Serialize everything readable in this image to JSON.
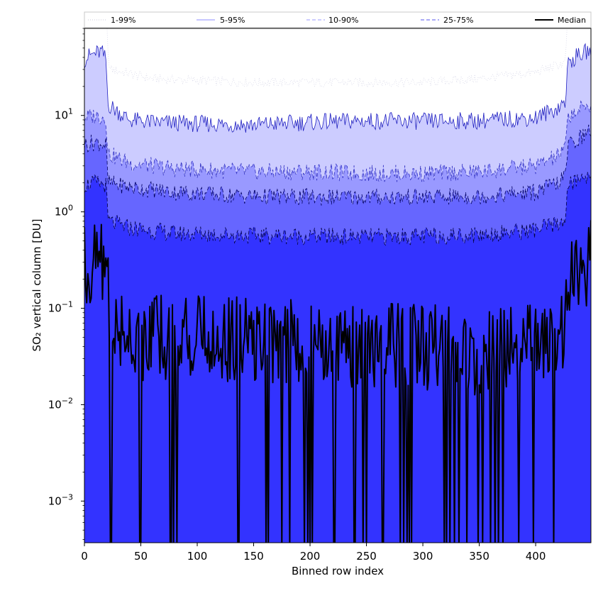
{
  "chart_data": {
    "type": "area",
    "xlabel": "Binned row index",
    "ylabel": "SO₂ vertical column [DU]",
    "xlim": [
      0,
      449
    ],
    "ylim": [
      0.00037,
      80
    ],
    "yscale": "log",
    "x_ticks": [
      0,
      50,
      100,
      150,
      200,
      250,
      300,
      350,
      400
    ],
    "y_ticks": [
      {
        "value": 0.001,
        "base": "10",
        "exp": "−3"
      },
      {
        "value": 0.01,
        "base": "10",
        "exp": "−2"
      },
      {
        "value": 0.1,
        "base": "10",
        "exp": "−1"
      },
      {
        "value": 1,
        "base": "10",
        "exp": "0"
      },
      {
        "value": 10,
        "base": "10",
        "exp": "1"
      }
    ],
    "grid": false,
    "legend_position": "top",
    "series": [
      {
        "name": "1-99%",
        "fill": "#ffffff",
        "line": "#d8d8e8",
        "style": "dotted",
        "lower_profile": [
          [
            0,
            0.0003
          ],
          [
            449,
            0.0003
          ]
        ],
        "upper_profile": [
          [
            0,
            115
          ],
          [
            5,
            140
          ],
          [
            10,
            150
          ],
          [
            15,
            160
          ],
          [
            19,
            150
          ],
          [
            21,
            40
          ],
          [
            23,
            30
          ],
          [
            60,
            24
          ],
          [
            150,
            22
          ],
          [
            250,
            22
          ],
          [
            300,
            22
          ],
          [
            350,
            24
          ],
          [
            400,
            28
          ],
          [
            426,
            35
          ],
          [
            429,
            130
          ],
          [
            435,
            140
          ],
          [
            449,
            170
          ]
        ]
      },
      {
        "name": "5-95%",
        "fill": "#ccccff",
        "line": "#2020c0",
        "style": "solid",
        "lower_profile": [
          [
            0,
            0.0003
          ],
          [
            449,
            0.0003
          ]
        ],
        "upper_profile": [
          [
            0,
            38
          ],
          [
            5,
            42
          ],
          [
            10,
            44
          ],
          [
            15,
            46
          ],
          [
            19,
            38
          ],
          [
            21,
            13
          ],
          [
            25,
            12
          ],
          [
            40,
            9
          ],
          [
            60,
            8.5
          ],
          [
            100,
            8.2
          ],
          [
            150,
            8
          ],
          [
            200,
            8.5
          ],
          [
            250,
            8.8
          ],
          [
            300,
            8.7
          ],
          [
            350,
            8.8
          ],
          [
            400,
            9.5
          ],
          [
            420,
            12
          ],
          [
            426,
            14
          ],
          [
            429,
            35
          ],
          [
            435,
            40
          ],
          [
            449,
            48
          ]
        ]
      },
      {
        "name": "10-90%",
        "fill": "#9999ff",
        "line": "#3030c0",
        "style": "dashed",
        "lower_profile": [
          [
            0,
            0.0003
          ],
          [
            449,
            0.0003
          ]
        ],
        "upper_profile": [
          [
            0,
            9.5
          ],
          [
            10,
            10
          ],
          [
            19,
            9.5
          ],
          [
            21,
            4
          ],
          [
            40,
            3.2
          ],
          [
            80,
            2.8
          ],
          [
            150,
            2.6
          ],
          [
            200,
            2.6
          ],
          [
            250,
            2.5
          ],
          [
            300,
            2.5
          ],
          [
            350,
            2.6
          ],
          [
            400,
            3
          ],
          [
            420,
            3.8
          ],
          [
            426,
            4.5
          ],
          [
            429,
            10
          ],
          [
            440,
            11.5
          ],
          [
            449,
            13
          ]
        ]
      },
      {
        "name": "25-75%",
        "fill": "#6666ff",
        "line": "#000060",
        "style": "dashed",
        "lower_profile": [
          [
            0,
            0.0003
          ],
          [
            449,
            0.0003
          ]
        ],
        "upper_profile": [
          [
            0,
            5
          ],
          [
            10,
            5.3
          ],
          [
            19,
            5
          ],
          [
            21,
            2
          ],
          [
            40,
            1.8
          ],
          [
            80,
            1.6
          ],
          [
            150,
            1.45
          ],
          [
            200,
            1.42
          ],
          [
            250,
            1.42
          ],
          [
            300,
            1.42
          ],
          [
            350,
            1.45
          ],
          [
            400,
            1.6
          ],
          [
            420,
            2
          ],
          [
            426,
            2.3
          ],
          [
            429,
            5
          ],
          [
            440,
            6
          ],
          [
            449,
            7
          ]
        ]
      },
      {
        "name": "",
        "fill": "#3333ff",
        "line": "#000040",
        "style": "dashed",
        "lower_profile": [
          [
            0,
            0.0003
          ],
          [
            449,
            0.0003
          ]
        ],
        "upper_profile": [
          [
            0,
            1.9
          ],
          [
            10,
            2
          ],
          [
            19,
            1.9
          ],
          [
            21,
            0.8
          ],
          [
            40,
            0.68
          ],
          [
            80,
            0.6
          ],
          [
            150,
            0.57
          ],
          [
            200,
            0.56
          ],
          [
            250,
            0.55
          ],
          [
            300,
            0.56
          ],
          [
            350,
            0.58
          ],
          [
            400,
            0.65
          ],
          [
            420,
            0.75
          ],
          [
            426,
            0.85
          ],
          [
            429,
            1.9
          ],
          [
            440,
            2.2
          ],
          [
            449,
            2.5
          ]
        ]
      },
      {
        "name": "Median",
        "fill": "none",
        "line": "#000000",
        "style": "solid",
        "profile": [
          [
            0,
            0.3
          ],
          [
            5,
            0.25
          ],
          [
            10,
            0.3
          ],
          [
            15,
            0.32
          ],
          [
            20,
            0.3
          ],
          [
            23,
            0.06
          ],
          [
            30,
            0.06
          ],
          [
            50,
            0.05
          ],
          [
            100,
            0.05
          ],
          [
            150,
            0.045
          ],
          [
            200,
            0.045
          ],
          [
            250,
            0.04
          ],
          [
            300,
            0.04
          ],
          [
            350,
            0.035
          ],
          [
            400,
            0.04
          ],
          [
            420,
            0.05
          ],
          [
            426,
            0.06
          ],
          [
            429,
            0.15
          ],
          [
            435,
            0.2
          ],
          [
            440,
            0.25
          ],
          [
            449,
            0.32
          ]
        ]
      }
    ],
    "median_dropouts": [
      23,
      24,
      49,
      50,
      76,
      77,
      79,
      82,
      136,
      137,
      161,
      163,
      175,
      182,
      195,
      198,
      200,
      202,
      221,
      222,
      239,
      240,
      247,
      250,
      264,
      265,
      280,
      283,
      286,
      288,
      290,
      319,
      321,
      324,
      328,
      332,
      339,
      349,
      353,
      360,
      364,
      367,
      371,
      385,
      398,
      416
    ]
  }
}
